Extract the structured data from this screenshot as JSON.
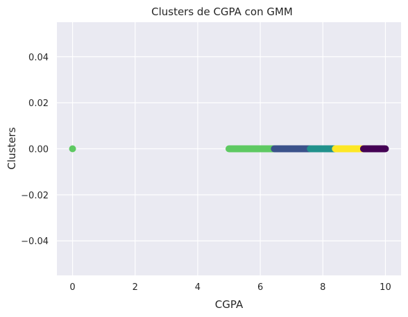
{
  "chart_data": {
    "type": "scatter",
    "title": "Clusters de CGPA con GMM",
    "xlabel": "CGPA",
    "ylabel": "Clusters",
    "xlim": [
      -0.5,
      10.5
    ],
    "ylim": [
      -0.055,
      0.055
    ],
    "xticks": [
      0,
      2,
      4,
      6,
      8,
      10
    ],
    "xtick_labels": [
      "0",
      "2",
      "4",
      "6",
      "8",
      "10"
    ],
    "yticks": [
      0.04,
      0.02,
      0.0,
      -0.02,
      -0.04
    ],
    "ytick_labels": [
      "0.04",
      "0.02",
      "0.00",
      "−0.02",
      "−0.04"
    ],
    "grid": true,
    "background": "#eaeaf2",
    "colormap": "viridis",
    "clusters": [
      {
        "color": "#5ec962",
        "points": [
          [
            0.0,
            0.0
          ]
        ],
        "ranges": [
          [
            5.0,
            6.45
          ]
        ]
      },
      {
        "color": "#3b528b",
        "ranges": [
          [
            6.45,
            7.6
          ]
        ]
      },
      {
        "color": "#21918c",
        "ranges": [
          [
            7.6,
            8.4
          ]
        ]
      },
      {
        "color": "#fde725",
        "ranges": [
          [
            8.4,
            9.3
          ]
        ]
      },
      {
        "color": "#440154",
        "ranges": [
          [
            9.3,
            10.0
          ]
        ]
      }
    ]
  }
}
